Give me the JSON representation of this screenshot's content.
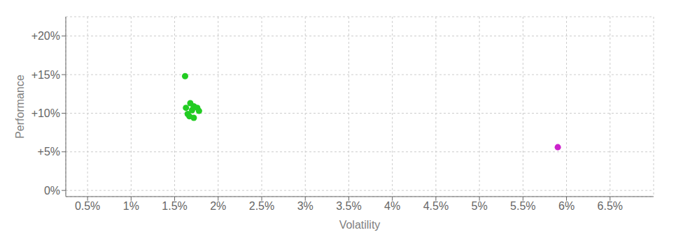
{
  "chart_data": {
    "type": "scatter",
    "xlabel": "Volatility",
    "ylabel": "Performance",
    "xlim": [
      0.0025,
      0.07
    ],
    "ylim": [
      -0.008,
      0.225
    ],
    "xticks": [
      {
        "value": 0.005,
        "label": "0.5%"
      },
      {
        "value": 0.01,
        "label": "1%"
      },
      {
        "value": 0.015,
        "label": "1.5%"
      },
      {
        "value": 0.02,
        "label": "2%"
      },
      {
        "value": 0.025,
        "label": "2.5%"
      },
      {
        "value": 0.03,
        "label": "3%"
      },
      {
        "value": 0.035,
        "label": "3.5%"
      },
      {
        "value": 0.04,
        "label": "4%"
      },
      {
        "value": 0.045,
        "label": "4.5%"
      },
      {
        "value": 0.05,
        "label": "5%"
      },
      {
        "value": 0.055,
        "label": "5.5%"
      },
      {
        "value": 0.06,
        "label": "6%"
      },
      {
        "value": 0.065,
        "label": "6.5%"
      }
    ],
    "yticks": [
      {
        "value": 0.0,
        "label": "0%"
      },
      {
        "value": 0.05,
        "label": "+5%"
      },
      {
        "value": 0.1,
        "label": "+10%"
      },
      {
        "value": 0.15,
        "label": "+15%"
      },
      {
        "value": 0.2,
        "label": "+20%"
      }
    ],
    "grid": true,
    "series": [
      {
        "color": "#22cc22",
        "x": [
          0.0162,
          0.0168,
          0.0172,
          0.0163,
          0.0176,
          0.017,
          0.0178,
          0.0165,
          0.0167,
          0.0172
        ],
        "values": [
          0.148,
          0.113,
          0.109,
          0.107,
          0.107,
          0.104,
          0.103,
          0.099,
          0.096,
          0.094
        ]
      },
      {
        "color": "#cc22cc",
        "x": [
          0.059
        ],
        "values": [
          0.056
        ]
      }
    ]
  }
}
